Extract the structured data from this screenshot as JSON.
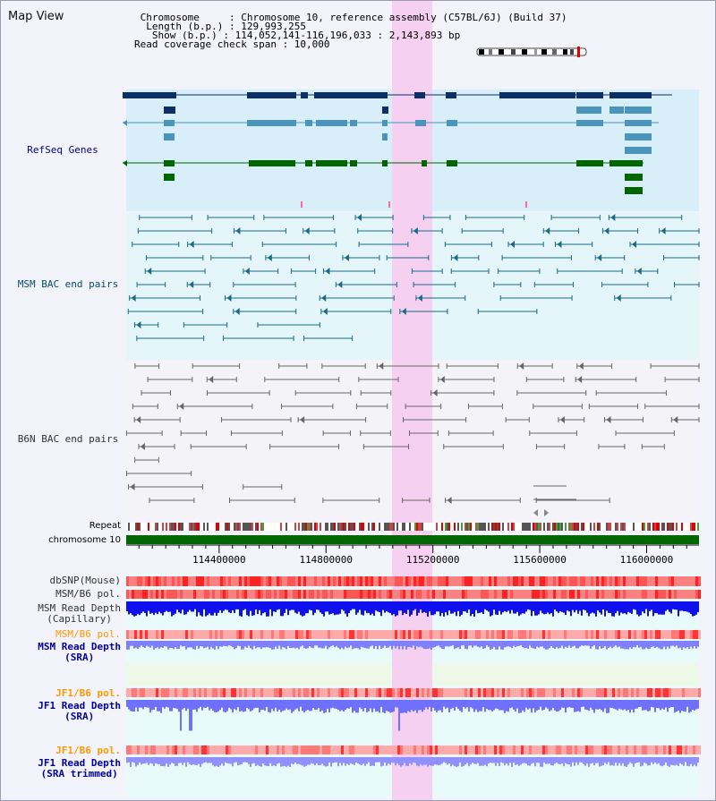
{
  "view": {
    "title": "Map View",
    "info": {
      "chromosome": " Chromosome     : Chromosome 10, reference assembly (C57BL/6J) (Build 37)",
      "length": "  Length (b.p.) : 129,993,255",
      "show": "   Show (b.p.) : 114,052,141-116,196,033 : 2,143,893 bp",
      "coverage": "Read coverage check span : 10,000"
    }
  },
  "tracks": {
    "refseq": {
      "label": "RefSeq Genes",
      "color": "#000099"
    },
    "msm_bac": {
      "label": "MSM BAC end pairs",
      "color": "#004d66"
    },
    "b6n_bac": {
      "label": "B6N BAC end pairs",
      "color": "#333333"
    },
    "repeat": {
      "label": "Repeat"
    },
    "chromosome": {
      "label": "chromosome 10"
    },
    "dbsnp": {
      "label": "dbSNP(Mouse)",
      "color": "#333333"
    },
    "msm_b6_pol_1": {
      "label": "MSM/B6 pol.",
      "color": "#333333"
    },
    "msm_read_depth_cap": {
      "label": "MSM Read Depth\n(Capillary)",
      "color": "#333333"
    },
    "msm_b6_pol_2": {
      "label": "MSM/B6 pol.",
      "color": "#ff9900"
    },
    "msm_read_depth_sra": {
      "label": "MSM Read Depth\n(SRA)",
      "color": "#000099"
    },
    "jf1_b6_pol_1": {
      "label": "JF1/B6 pol.",
      "color": "#ff9900"
    },
    "jf1_read_depth_sra": {
      "label": "JF1 Read Depth\n(SRA)",
      "color": "#000099"
    },
    "jf1_b6_pol_2": {
      "label": "JF1/B6 pol.",
      "color": "#ff9900"
    },
    "jf1_read_depth_trim": {
      "label": "JF1 Read Depth\n(SRA trimmed)",
      "color": "#000099"
    }
  },
  "axis": {
    "ticks": [
      "114400000",
      "114800000",
      "115200000",
      "115600000",
      "116000000"
    ],
    "tick_values": [
      114400000,
      114800000,
      115200000,
      115600000,
      116000000
    ],
    "range": [
      114052141,
      116196033
    ]
  },
  "highlight": {
    "color": "#f5d0f0"
  }
}
